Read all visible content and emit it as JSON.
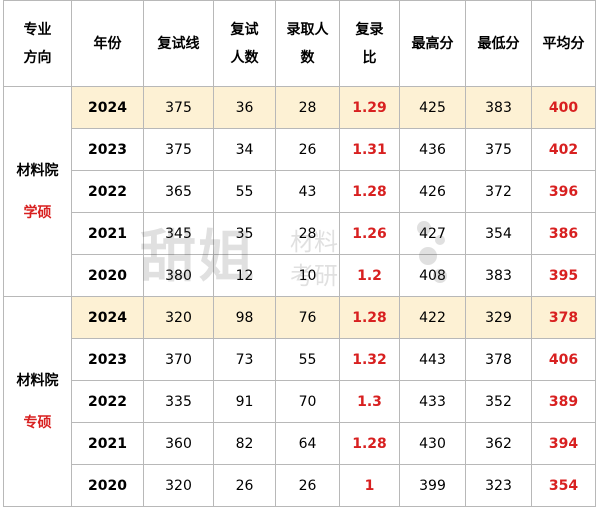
{
  "header": {
    "col_major_line1": "专业",
    "col_major_line2": "方向",
    "col_year": "年份",
    "col_cutoff": "复试线",
    "col_retest_line1": "复试",
    "col_retest_line2": "人数",
    "col_admitted_line1": "录取人",
    "col_admitted_line2": "数",
    "col_ratio_line1": "复录",
    "col_ratio_line2": "比",
    "col_max": "最高分",
    "col_min": "最低分",
    "col_avg": "平均分"
  },
  "groups": [
    {
      "dept": "材料院",
      "degree": "学硕",
      "rows": [
        {
          "year": "2024",
          "cutoff": "375",
          "retest": "36",
          "admitted": "28",
          "ratio": "1.29",
          "max": "425",
          "min": "383",
          "avg": "400"
        },
        {
          "year": "2023",
          "cutoff": "375",
          "retest": "34",
          "admitted": "26",
          "ratio": "1.31",
          "max": "436",
          "min": "375",
          "avg": "402"
        },
        {
          "year": "2022",
          "cutoff": "365",
          "retest": "55",
          "admitted": "43",
          "ratio": "1.28",
          "max": "426",
          "min": "372",
          "avg": "396"
        },
        {
          "year": "2021",
          "cutoff": "345",
          "retest": "35",
          "admitted": "28",
          "ratio": "1.26",
          "max": "427",
          "min": "354",
          "avg": "386"
        },
        {
          "year": "2020",
          "cutoff": "380",
          "retest": "12",
          "admitted": "10",
          "ratio": "1.2",
          "max": "408",
          "min": "383",
          "avg": "395"
        }
      ]
    },
    {
      "dept": "材料院",
      "degree": "专硕",
      "rows": [
        {
          "year": "2024",
          "cutoff": "320",
          "retest": "98",
          "admitted": "76",
          "ratio": "1.28",
          "max": "422",
          "min": "329",
          "avg": "378"
        },
        {
          "year": "2023",
          "cutoff": "370",
          "retest": "73",
          "admitted": "55",
          "ratio": "1.32",
          "max": "443",
          "min": "378",
          "avg": "406"
        },
        {
          "year": "2022",
          "cutoff": "335",
          "retest": "91",
          "admitted": "70",
          "ratio": "1.3",
          "max": "433",
          "min": "352",
          "avg": "389"
        },
        {
          "year": "2021",
          "cutoff": "360",
          "retest": "82",
          "admitted": "64",
          "ratio": "1.28",
          "max": "430",
          "min": "362",
          "avg": "394"
        },
        {
          "year": "2020",
          "cutoff": "320",
          "retest": "26",
          "admitted": "26",
          "ratio": "1",
          "max": "399",
          "min": "323",
          "avg": "354"
        }
      ]
    }
  ],
  "watermark": {
    "big": "甜姐",
    "small1": "材料",
    "small2": "考研"
  },
  "colors": {
    "highlight_row": "#fdf1d4",
    "accent_red": "#d82020",
    "border": "#b8b8b8"
  }
}
